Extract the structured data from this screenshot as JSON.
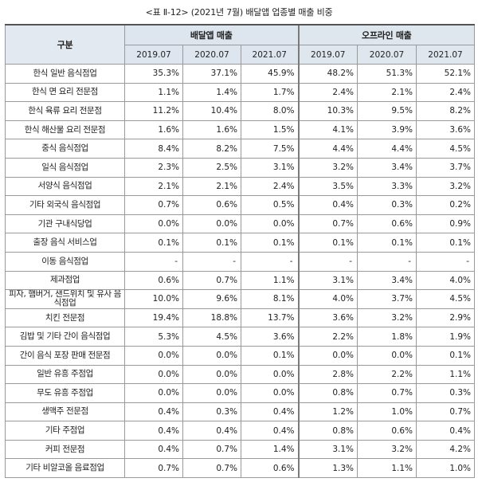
{
  "caption": "<표 Ⅱ-12> (2021년 7월) 배달앱 업종별 매출 비중",
  "header": {
    "category": "구분",
    "group_delivery": "배달앱 매출",
    "group_offline": "오프라인 매출",
    "years": [
      "2019.07",
      "2020.07",
      "2021.07",
      "2019.07",
      "2020.07",
      "2021.07"
    ]
  },
  "rows": [
    {
      "label": "한식 일반 음식점업",
      "values": [
        "35.3%",
        "37.1%",
        "45.9%",
        "48.2%",
        "51.3%",
        "52.1%"
      ]
    },
    {
      "label": "한식 면 요리 전문점",
      "values": [
        "1.1%",
        "1.4%",
        "1.7%",
        "2.4%",
        "2.1%",
        "2.4%"
      ]
    },
    {
      "label": "한식 육류 요리 전문점",
      "values": [
        "11.2%",
        "10.4%",
        "8.0%",
        "10.3%",
        "9.5%",
        "8.2%"
      ]
    },
    {
      "label": "한식 해산물 요리 전문점",
      "values": [
        "1.6%",
        "1.6%",
        "1.5%",
        "4.1%",
        "3.9%",
        "3.6%"
      ]
    },
    {
      "label": "중식 음식점업",
      "values": [
        "8.4%",
        "8.2%",
        "7.5%",
        "4.4%",
        "4.4%",
        "4.5%"
      ]
    },
    {
      "label": "일식 음식점업",
      "values": [
        "2.3%",
        "2.5%",
        "3.1%",
        "3.2%",
        "3.4%",
        "3.7%"
      ]
    },
    {
      "label": "서양식 음식점업",
      "values": [
        "2.1%",
        "2.1%",
        "2.4%",
        "3.5%",
        "3.3%",
        "3.2%"
      ]
    },
    {
      "label": "기타 외국식 음식점업",
      "values": [
        "0.7%",
        "0.6%",
        "0.5%",
        "0.4%",
        "0.3%",
        "0.2%"
      ]
    },
    {
      "label": "기관 구내식당업",
      "values": [
        "0.0%",
        "0.0%",
        "0.0%",
        "0.7%",
        "0.6%",
        "0.9%"
      ]
    },
    {
      "label": "출장 음식 서비스업",
      "values": [
        "0.1%",
        "0.1%",
        "0.1%",
        "0.1%",
        "0.1%",
        "0.1%"
      ]
    },
    {
      "label": "이동 음식점업",
      "values": [
        "-",
        "-",
        "-",
        "-",
        "-",
        "-"
      ]
    },
    {
      "label": "제과점업",
      "values": [
        "0.6%",
        "0.7%",
        "1.1%",
        "3.1%",
        "3.4%",
        "4.0%"
      ]
    },
    {
      "label": "피자, 햄버거, 샌드위치 및 유사 음식점업",
      "values": [
        "10.0%",
        "9.6%",
        "8.1%",
        "4.0%",
        "3.7%",
        "4.5%"
      ]
    },
    {
      "label": "치킨 전문점",
      "values": [
        "19.4%",
        "18.8%",
        "13.7%",
        "3.6%",
        "3.2%",
        "2.9%"
      ]
    },
    {
      "label": "김밥 및 기타 간이 음식점업",
      "values": [
        "5.3%",
        "4.5%",
        "3.6%",
        "2.2%",
        "1.8%",
        "1.9%"
      ]
    },
    {
      "label": "간이 음식 포장 판매 전문점",
      "values": [
        "0.0%",
        "0.0%",
        "0.1%",
        "0.0%",
        "0.0%",
        "0.1%"
      ]
    },
    {
      "label": "일반 유흥 주점업",
      "values": [
        "0.0%",
        "0.0%",
        "0.0%",
        "2.8%",
        "2.2%",
        "1.1%"
      ]
    },
    {
      "label": "무도 유흥 주점업",
      "values": [
        "0.0%",
        "0.0%",
        "0.0%",
        "0.8%",
        "0.7%",
        "0.3%"
      ]
    },
    {
      "label": "생맥주 전문점",
      "values": [
        "0.4%",
        "0.3%",
        "0.4%",
        "1.2%",
        "1.0%",
        "0.7%"
      ]
    },
    {
      "label": "기타 주점업",
      "values": [
        "0.4%",
        "0.4%",
        "0.4%",
        "0.8%",
        "0.6%",
        "0.4%"
      ]
    },
    {
      "label": "커피 전문점",
      "values": [
        "0.4%",
        "0.7%",
        "1.4%",
        "3.1%",
        "3.2%",
        "4.2%"
      ]
    },
    {
      "label": "기타 비알코올 음료점업",
      "values": [
        "0.7%",
        "0.7%",
        "0.6%",
        "1.3%",
        "1.1%",
        "1.0%"
      ]
    }
  ]
}
